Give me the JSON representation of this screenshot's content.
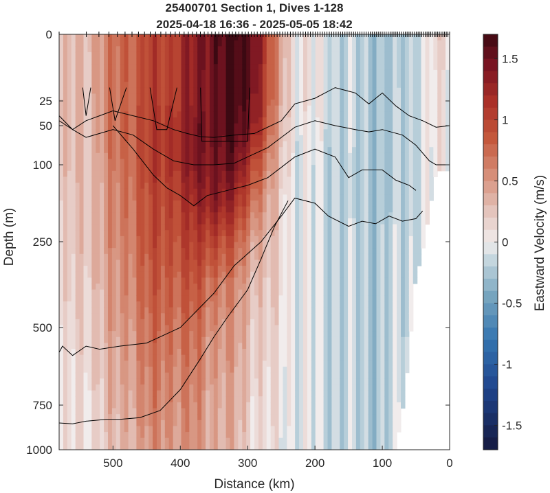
{
  "chart_data": {
    "type": "heatmap",
    "title_line1": "25400701 Section 1, Dives 1-128",
    "title_line2": "2025-04-18 16:36 - 2025-05-05 18:42",
    "xlabel": "Distance (km)",
    "ylabel": "Depth (m)",
    "colorbar_label": "Eastward Velocity (m/s)",
    "x_reversed": true,
    "xlim": [
      580,
      0
    ],
    "ylim": [
      0,
      1000
    ],
    "y_scale": "compressed (square-root-like) depth axis",
    "x_ticks": [
      500,
      400,
      300,
      200,
      100,
      0
    ],
    "x_tick_labels": [
      "500",
      "400",
      "300",
      "200",
      "100",
      "0"
    ],
    "y_ticks": [
      0,
      25,
      50,
      100,
      250,
      500,
      750,
      1000
    ],
    "y_tick_labels": [
      "0",
      "25",
      "50",
      "100",
      "250",
      "500",
      "750",
      "1000"
    ],
    "clim": [
      -1.7,
      1.7
    ],
    "colorbar_ticks": [
      1.5,
      1,
      0.5,
      0,
      -0.5,
      -1,
      -1.5
    ],
    "colorbar_tick_labels": [
      "1.5",
      "1",
      "0.5",
      "0",
      "-0.5",
      "-1",
      "-1.5"
    ],
    "colormap": "diverging blue-white-red (balance)",
    "colors": {
      "max": "#3c0912",
      "zero": "#f1ecec",
      "min": "#15193e",
      "contour": "#000000"
    },
    "jet_core": {
      "distance_km": 320,
      "depth_m": 10,
      "velocity_ms": 1.7
    },
    "velocity_field_samples": {
      "x_km": [
        575,
        540,
        500,
        460,
        420,
        380,
        350,
        320,
        290,
        260,
        230,
        200,
        170,
        140,
        110,
        80,
        50,
        20
      ],
      "depth_m": [
        0,
        25,
        50,
        100,
        175,
        250,
        375,
        500,
        750,
        1000
      ],
      "u_ms": [
        [
          0.2,
          0.35,
          0.7,
          0.9,
          1.05,
          1.3,
          1.6,
          1.7,
          1.6,
          0.6,
          0.1,
          0.0,
          -0.1,
          -0.2,
          -0.2,
          -0.3,
          -0.1,
          0.1
        ],
        [
          0.25,
          0.3,
          0.65,
          0.9,
          1.05,
          1.3,
          1.55,
          1.65,
          1.5,
          0.55,
          0.1,
          0.0,
          -0.1,
          -0.2,
          -0.2,
          -0.25,
          -0.1,
          0.05
        ],
        [
          0.25,
          0.3,
          0.65,
          0.95,
          1.1,
          1.35,
          1.55,
          1.6,
          1.4,
          0.5,
          0.05,
          -0.05,
          -0.1,
          -0.2,
          -0.2,
          -0.25,
          -0.1,
          0.05
        ],
        [
          0.2,
          0.3,
          0.6,
          0.9,
          1.1,
          1.35,
          1.5,
          1.45,
          1.05,
          0.35,
          0.0,
          -0.1,
          -0.15,
          -0.25,
          -0.2,
          -0.25,
          -0.1,
          0.0
        ],
        [
          0.15,
          0.3,
          0.55,
          0.85,
          1.0,
          1.15,
          1.4,
          1.15,
          0.75,
          0.25,
          0.0,
          -0.1,
          -0.15,
          -0.25,
          -0.2,
          -0.25,
          -0.1,
          0.0
        ],
        [
          0.15,
          0.3,
          0.5,
          0.8,
          0.95,
          1.0,
          1.05,
          0.8,
          0.5,
          0.2,
          0.0,
          -0.1,
          -0.15,
          -0.2,
          -0.2,
          -0.2,
          -0.1,
          0.0
        ],
        [
          0.1,
          0.25,
          0.45,
          0.75,
          0.85,
          0.85,
          0.75,
          0.55,
          0.35,
          0.15,
          0.0,
          -0.1,
          -0.15,
          -0.2,
          -0.2,
          -0.2,
          -0.1,
          0.0
        ],
        [
          0.05,
          0.2,
          0.4,
          0.65,
          0.75,
          0.7,
          0.6,
          0.45,
          0.3,
          0.1,
          0.0,
          -0.1,
          -0.15,
          -0.2,
          -0.2,
          -0.2,
          -0.1,
          0.0
        ],
        [
          0.0,
          0.15,
          0.3,
          0.55,
          0.6,
          0.55,
          0.45,
          0.35,
          0.2,
          0.05,
          0.0,
          -0.1,
          -0.15,
          -0.2,
          -0.2,
          -0.15,
          -0.05,
          0.0
        ],
        [
          0.0,
          0.1,
          0.25,
          0.45,
          0.55,
          0.5,
          0.4,
          0.3,
          0.15,
          0.0,
          -0.05,
          -0.1,
          -0.15,
          -0.2,
          -0.2,
          -0.15,
          -0.05,
          0.0
        ]
      ],
      "data_max_depth_m_by_x": [
        1000,
        1000,
        1000,
        1000,
        1000,
        1000,
        1000,
        1000,
        1000,
        1000,
        1000,
        1000,
        1000,
        1000,
        1000,
        1000,
        350,
        110
      ]
    },
    "contour_lines": [
      {
        "name": "shallow-contour-1",
        "x": [
          545,
          540,
          533
        ],
        "depth": [
          20,
          40,
          20
        ]
      },
      {
        "name": "shallow-contour-2",
        "x": [
          505,
          497,
          480
        ],
        "depth": [
          20,
          45,
          20
        ]
      },
      {
        "name": "shallow-contour-3",
        "x": [
          445,
          435,
          420,
          405
        ],
        "depth": [
          20,
          55,
          55,
          20
        ]
      },
      {
        "name": "shallow-contour-4",
        "x": [
          370,
          368,
          350,
          330,
          300,
          297
        ],
        "depth": [
          20,
          70,
          70,
          70,
          70,
          20
        ]
      },
      {
        "name": "contour-upper",
        "x": [
          580,
          560,
          540,
          520,
          500,
          470,
          440,
          410,
          390,
          370,
          350,
          320,
          290,
          250,
          230,
          200,
          170,
          140,
          120,
          100,
          80,
          60,
          40,
          20,
          0
        ],
        "depth": [
          45,
          55,
          45,
          40,
          35,
          40,
          45,
          55,
          60,
          64,
          65,
          62,
          60,
          45,
          28,
          24,
          20,
          22,
          28,
          22,
          30,
          40,
          45,
          52,
          50
        ]
      },
      {
        "name": "contour-middle",
        "x": [
          580,
          560,
          540,
          520,
          500,
          470,
          440,
          410,
          380,
          350,
          320,
          300,
          270,
          250,
          230,
          200,
          170,
          140,
          120,
          100,
          70,
          50,
          30,
          20,
          0
        ],
        "depth": [
          40,
          55,
          65,
          60,
          55,
          62,
          80,
          95,
          100,
          100,
          98,
          90,
          78,
          65,
          52,
          45,
          50,
          55,
          58,
          55,
          62,
          75,
          95,
          100,
          100
        ]
      },
      {
        "name": "contour-lower",
        "x": [
          500,
          470,
          440,
          420,
          400,
          380,
          360,
          330,
          300,
          270,
          250,
          230,
          200,
          170,
          150,
          130,
          100,
          80,
          60,
          50
        ],
        "depth": [
          50,
          80,
          120,
          145,
          160,
          180,
          160,
          150,
          140,
          125,
          105,
          90,
          80,
          90,
          125,
          110,
          110,
          130,
          140,
          150
        ]
      },
      {
        "name": "contour-deep-1",
        "x": [
          580,
          575,
          560,
          540,
          520,
          490,
          450,
          400,
          350,
          320,
          300,
          280,
          250,
          230,
          200,
          180,
          150,
          130,
          110,
          90,
          70,
          50,
          40
        ],
        "depth": [
          580,
          560,
          590,
          560,
          570,
          560,
          550,
          500,
          400,
          320,
          285,
          250,
          200,
          165,
          175,
          200,
          220,
          210,
          215,
          200,
          210,
          205,
          190
        ]
      },
      {
        "name": "contour-deep-2",
        "x": [
          580,
          560,
          540,
          510,
          490,
          460,
          430,
          400,
          370,
          350,
          330,
          300,
          280,
          260,
          240
        ],
        "depth": [
          850,
          855,
          840,
          830,
          830,
          820,
          780,
          700,
          600,
          530,
          470,
          390,
          300,
          220,
          170
        ]
      }
    ]
  }
}
